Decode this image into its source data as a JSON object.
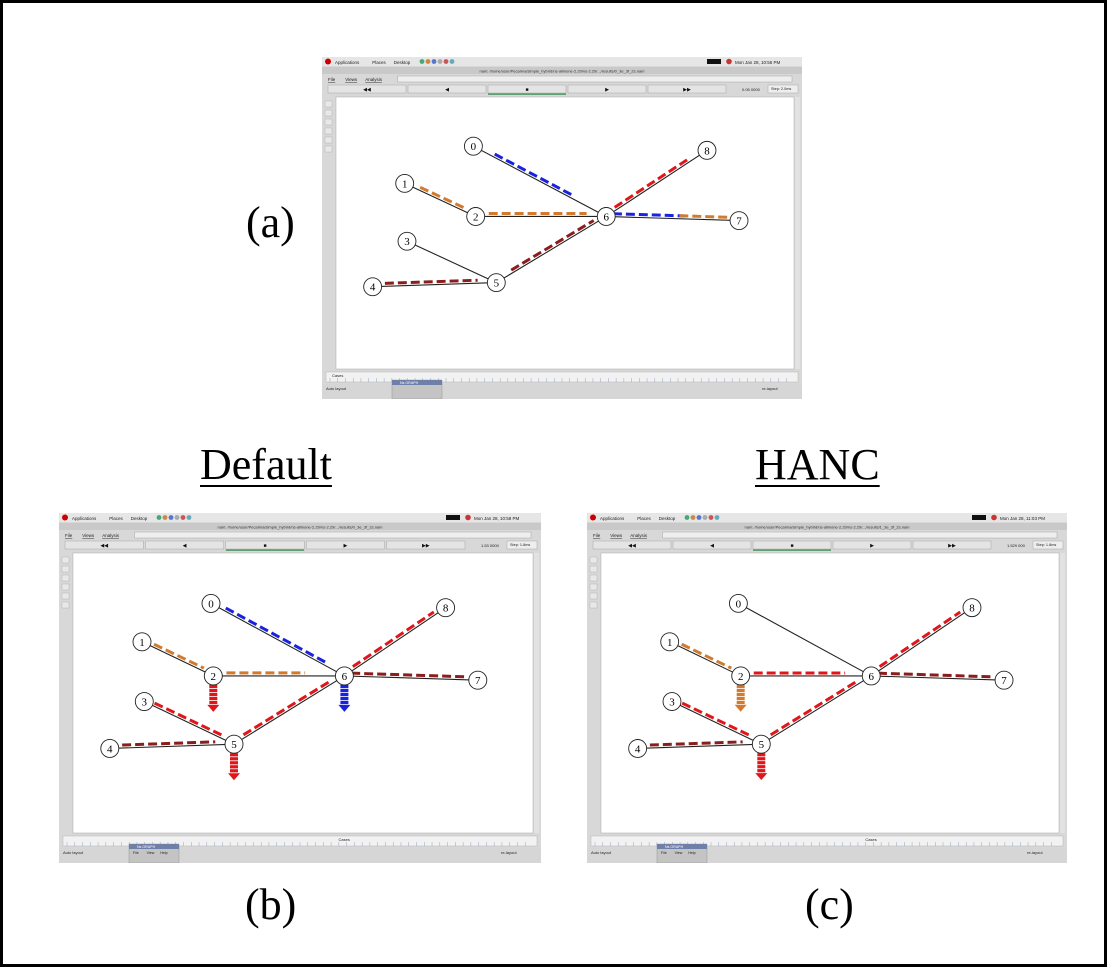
{
  "labels": {
    "a": "(a)",
    "b": "(b)",
    "c": "(c)",
    "default_heading": "Default",
    "hanc_heading": "HANC"
  },
  "node_labels": [
    "0",
    "1",
    "2",
    "3",
    "4",
    "5",
    "6",
    "7",
    "8"
  ],
  "shots": {
    "a": {
      "menu": [
        "Applications",
        "Places",
        "Desktop"
      ],
      "clock": "Mon Jan 28, 10:55 PM",
      "window_menu": [
        "File",
        "Views",
        "Analysis"
      ],
      "player": [
        "◀◀",
        "◀",
        "■",
        "▶",
        "▶▶"
      ],
      "time": "0.05 0000",
      "step": "Step: 2.0ms",
      "status_left": "Auto layout",
      "status_right": "re-layout",
      "popup_title": "Ns GRAPH",
      "timeline_tag": "Cases",
      "title_path": "nam: /home/user/Pecarina/simple_hybrid/ns-allinone-2.29/ns-2.29/.../results/0_3e_3f_2s.nam"
    },
    "b": {
      "menu": [
        "Applications",
        "Places",
        "Desktop"
      ],
      "clock": "Mon Jan 28, 10:58 PM",
      "window_menu": [
        "File",
        "Views",
        "Analysis"
      ],
      "player": [
        "◀◀",
        "◀",
        "■",
        "▶",
        "▶▶"
      ],
      "time": "1.53 0000",
      "step": "Step: 1.8ms",
      "status_left": "Auto layout",
      "status_right": "re-layout",
      "popup_title": "Ns GRAPH",
      "popup_menu": [
        "File",
        "View",
        "Help"
      ],
      "timeline_tag": "Cases",
      "title_path": "nam: /home/user/Pecarina/simple_hybrid/ns-allinone-2.29/ns-2.29/.../results/0_3e_3f_2s.nam"
    },
    "c": {
      "menu": [
        "Applications",
        "Places",
        "Desktop"
      ],
      "clock": "Mon Jan 28, 11:03 PM",
      "window_menu": [
        "File",
        "Views",
        "Analysis"
      ],
      "player": [
        "◀◀",
        "◀",
        "■",
        "▶",
        "▶▶"
      ],
      "time": "1.529 000",
      "step": "Step: 1.8ms",
      "status_left": "Auto layout",
      "status_right": "re-layout",
      "popup_title": "Ns GRAPH",
      "popup_menu": [
        "File",
        "View",
        "Help"
      ],
      "timeline_tag": "Cases",
      "title_path": "nam: /home/user/Pecarina/simple_hybrid/ns-allinone-2.29/ns-2.29/.../results/1_3e_3f_2s.nam"
    }
  },
  "colors": {
    "red": "#e0161b",
    "dark_red": "#8c1d1d",
    "blue": "#1a22e0",
    "orange": "#d27a2e",
    "link": "#222222"
  }
}
